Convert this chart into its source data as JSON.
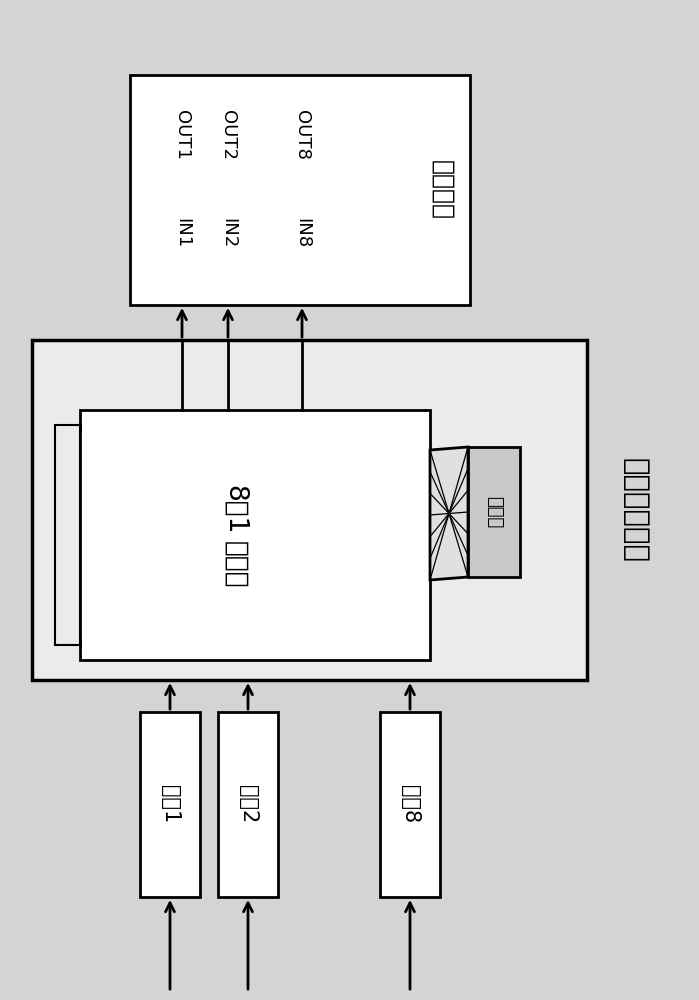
{
  "bg_color": "#d4d4d4",
  "title": "交叉矩阵开关",
  "driver_module_label": "驱动模块",
  "mux_label1": "8选1",
  "mux_label2": "选择器",
  "decoder_label": "译码器",
  "optocoupler_labels": [
    "光耦1",
    "光耦2",
    "光耦8"
  ],
  "in_labels": [
    "IN1",
    "IN2",
    "IN8"
  ],
  "out_labels": [
    "OUT1",
    "OUT2",
    "OUT8"
  ],
  "line_color": "#000000",
  "box_fill": "#ffffff",
  "decoder_fill": "#c8c8c8",
  "outer_box_fill": "#ebebeb",
  "trap_fill": "#e0e0e0"
}
